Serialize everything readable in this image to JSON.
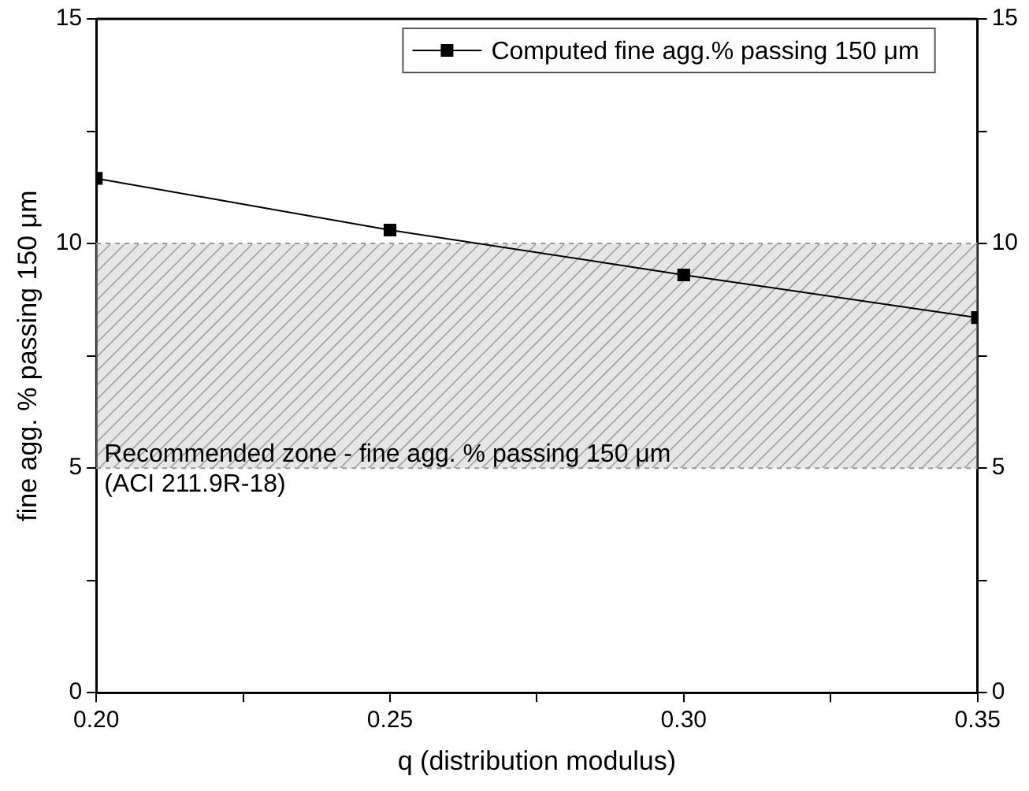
{
  "chart_data": {
    "type": "line",
    "xlabel": "q (distribution modulus)",
    "ylabel": "fine agg. % passing 150 μm",
    "x": [
      0.2,
      0.25,
      0.3,
      0.35
    ],
    "series": [
      {
        "name": "Computed fine agg.% passing 150 μm",
        "color": "#000000",
        "values": [
          11.45,
          10.3,
          9.3,
          8.35
        ]
      }
    ],
    "xlim": [
      0.2,
      0.35
    ],
    "xticks": [
      {
        "value": 0.2,
        "label": "0.20"
      },
      {
        "value": 0.225,
        "label": null
      },
      {
        "value": 0.25,
        "label": "0.25"
      },
      {
        "value": 0.275,
        "label": null
      },
      {
        "value": 0.3,
        "label": "0.30"
      },
      {
        "value": 0.325,
        "label": null
      },
      {
        "value": 0.35,
        "label": "0.35"
      }
    ],
    "ylim": [
      0,
      15
    ],
    "yticks": [
      0,
      {
        "value": 2.5,
        "label": null
      },
      5,
      {
        "value": 7.5,
        "label": null
      },
      10,
      {
        "value": 12.5,
        "label": null
      },
      15
    ],
    "y2lim": [
      0,
      15
    ],
    "y2ticks": [
      0,
      {
        "value": 2.5,
        "label": null
      },
      5,
      {
        "value": 7.5,
        "label": null
      },
      10,
      {
        "value": 12.5,
        "label": null
      },
      15
    ],
    "bands": [
      {
        "axis": "y",
        "from": 5,
        "to": 10,
        "label": "Recommended zone - fine agg. % passing 150 μm\n(ACI 211.9R-18)",
        "color": "#e6e6e6"
      }
    ],
    "legend": "top right",
    "marker": "square",
    "line_style": "solid"
  }
}
